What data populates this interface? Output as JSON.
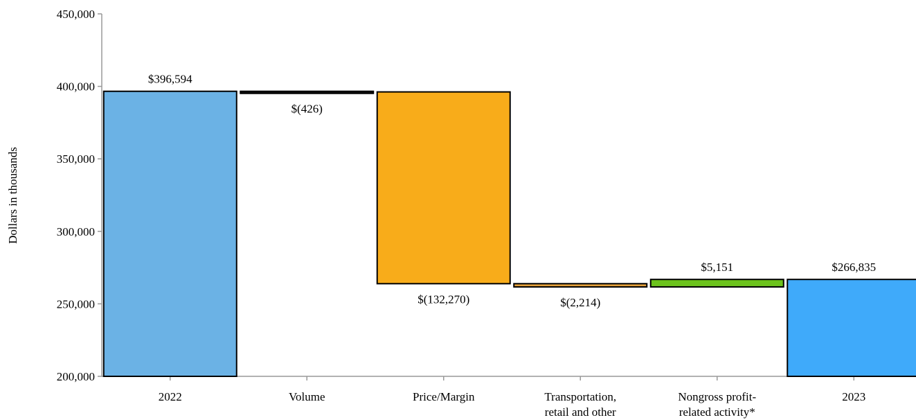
{
  "chart_data": {
    "type": "bar",
    "subtype": "waterfall",
    "ylabel": "Dollars in thousands",
    "ylim": [
      200000,
      450000
    ],
    "y_ticks": [
      200000,
      250000,
      300000,
      350000,
      400000,
      450000
    ],
    "y_tick_labels": [
      "200,000",
      "250,000",
      "300,000",
      "350,000",
      "400,000",
      "450,000"
    ],
    "categories": [
      [
        "2022"
      ],
      [
        "Volume"
      ],
      [
        "Price/Margin"
      ],
      [
        "Transportation,",
        "retail and other"
      ],
      [
        "Nongross profit-",
        "related activity*"
      ],
      [
        "2023"
      ]
    ],
    "steps": [
      {
        "kind": "total",
        "value": 396594,
        "label": "$396,594",
        "color": "#6BB2E5"
      },
      {
        "kind": "delta",
        "value": -426,
        "label": "$(426)",
        "color": "#111111"
      },
      {
        "kind": "delta",
        "value": -132270,
        "label": "$(132,270)",
        "color": "#F8AC1A"
      },
      {
        "kind": "delta",
        "value": -2214,
        "label": "$(2,214)",
        "color": "#E6A23C"
      },
      {
        "kind": "delta",
        "value": 5151,
        "label": "$5,151",
        "color": "#6CC31D"
      },
      {
        "kind": "total",
        "value": 266835,
        "label": "$266,835",
        "color": "#3FAAFA"
      }
    ],
    "grid": false,
    "legend": "none"
  }
}
